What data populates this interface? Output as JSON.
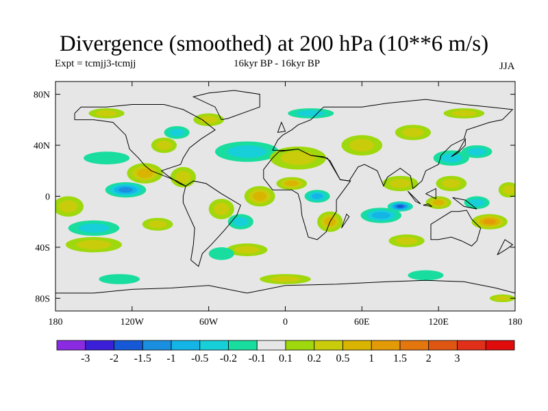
{
  "chart_data": {
    "type": "heatmap",
    "title": "Divergence (smoothed) at 200 hPa (10**6 m/s)",
    "subtitle_left": "Expt = tcmjj3-tcmjj",
    "subtitle_center": "16kyr BP - 16kyr BP",
    "subtitle_right": "JJA",
    "x_ticks": [
      {
        "value": -180,
        "label": "180"
      },
      {
        "value": -120,
        "label": "120W"
      },
      {
        "value": -60,
        "label": "60W"
      },
      {
        "value": 0,
        "label": "0"
      },
      {
        "value": 60,
        "label": "60E"
      },
      {
        "value": 120,
        "label": "120E"
      },
      {
        "value": 180,
        "label": "180"
      }
    ],
    "y_ticks": [
      {
        "value": 80,
        "label": "80N"
      },
      {
        "value": 40,
        "label": "40N"
      },
      {
        "value": 0,
        "label": "0"
      },
      {
        "value": -40,
        "label": "40S"
      },
      {
        "value": -80,
        "label": "80S"
      }
    ],
    "xlim": [
      -180,
      180
    ],
    "ylim": [
      -90,
      90
    ],
    "colorbar": {
      "colors": [
        "#8a2be2",
        "#3b1ed8",
        "#1559d6",
        "#1a8fe0",
        "#14b4e6",
        "#17cfd9",
        "#19dd9e",
        "#e6e6e6",
        "#9fd80c",
        "#c8cc0a",
        "#d9b400",
        "#e39a07",
        "#e3760c",
        "#df5512",
        "#e0301a",
        "#e00b0b"
      ],
      "labels": [
        "-3",
        "-2",
        "-1.5",
        "-1",
        "-0.5",
        "-0.2",
        "-0.1",
        "0.1",
        "0.2",
        "0.5",
        "1",
        "1.5",
        "2",
        "3"
      ]
    },
    "blobs": [
      {
        "lon": -125,
        "lat": 5,
        "rlon": 16,
        "rlat": 6,
        "value": -1.2
      },
      {
        "lon": -150,
        "lat": -25,
        "rlon": 20,
        "rlat": 6,
        "value": -0.35
      },
      {
        "lon": -150,
        "lat": -38,
        "rlon": 22,
        "rlat": 6,
        "value": 0.4
      },
      {
        "lon": -170,
        "lat": -8,
        "rlon": 12,
        "rlat": 8,
        "value": 0.3
      },
      {
        "lon": -110,
        "lat": 18,
        "rlon": 14,
        "rlat": 8,
        "value": 0.9
      },
      {
        "lon": -140,
        "lat": 30,
        "rlon": 18,
        "rlat": 5,
        "value": -0.15
      },
      {
        "lon": -95,
        "lat": 40,
        "rlon": 10,
        "rlat": 6,
        "value": 0.3
      },
      {
        "lon": -85,
        "lat": 50,
        "rlon": 10,
        "rlat": 5,
        "value": -0.3
      },
      {
        "lon": -80,
        "lat": 15,
        "rlon": 10,
        "rlat": 8,
        "value": 0.25
      },
      {
        "lon": -60,
        "lat": 60,
        "rlon": 12,
        "rlat": 5,
        "value": 0.2
      },
      {
        "lon": -30,
        "lat": 35,
        "rlon": 25,
        "rlat": 8,
        "value": -0.3
      },
      {
        "lon": -20,
        "lat": 0,
        "rlon": 12,
        "rlat": 8,
        "value": 0.5
      },
      {
        "lon": -50,
        "lat": -10,
        "rlon": 10,
        "rlat": 8,
        "value": 0.4
      },
      {
        "lon": -35,
        "lat": -20,
        "rlon": 10,
        "rlat": 6,
        "value": -0.3
      },
      {
        "lon": -100,
        "lat": -22,
        "rlon": 12,
        "rlat": 5,
        "value": 0.35
      },
      {
        "lon": -30,
        "lat": -42,
        "rlon": 16,
        "rlat": 5,
        "value": 0.25
      },
      {
        "lon": -50,
        "lat": -45,
        "rlon": 10,
        "rlat": 5,
        "value": -0.15
      },
      {
        "lon": 10,
        "lat": 30,
        "rlon": 22,
        "rlat": 9,
        "value": 0.35
      },
      {
        "lon": 5,
        "lat": 10,
        "rlon": 12,
        "rlat": 5,
        "value": 0.8
      },
      {
        "lon": 25,
        "lat": 0,
        "rlon": 10,
        "rlat": 5,
        "value": -0.5
      },
      {
        "lon": 35,
        "lat": -20,
        "rlon": 10,
        "rlat": 8,
        "value": 0.9
      },
      {
        "lon": 75,
        "lat": -15,
        "rlon": 16,
        "rlat": 6,
        "value": -0.9
      },
      {
        "lon": 90,
        "lat": -8,
        "rlon": 10,
        "rlat": 4,
        "value": -1.6
      },
      {
        "lon": 95,
        "lat": -35,
        "rlon": 14,
        "rlat": 5,
        "value": 0.3
      },
      {
        "lon": 90,
        "lat": 10,
        "rlon": 14,
        "rlat": 6,
        "value": 0.3
      },
      {
        "lon": 60,
        "lat": 40,
        "rlon": 16,
        "rlat": 8,
        "value": 0.35
      },
      {
        "lon": 100,
        "lat": 50,
        "rlon": 14,
        "rlat": 6,
        "value": 0.3
      },
      {
        "lon": 130,
        "lat": 30,
        "rlon": 14,
        "rlat": 6,
        "value": -0.4
      },
      {
        "lon": 150,
        "lat": 35,
        "rlon": 12,
        "rlat": 5,
        "value": -0.3
      },
      {
        "lon": 130,
        "lat": 10,
        "rlon": 12,
        "rlat": 6,
        "value": 0.3
      },
      {
        "lon": 120,
        "lat": -5,
        "rlon": 10,
        "rlat": 5,
        "value": 0.8
      },
      {
        "lon": 150,
        "lat": -5,
        "rlon": 10,
        "rlat": 5,
        "value": -0.3
      },
      {
        "lon": 160,
        "lat": -20,
        "rlon": 14,
        "rlat": 6,
        "value": 1.2
      },
      {
        "lon": 175,
        "lat": 5,
        "rlon": 8,
        "rlat": 6,
        "value": 0.3
      },
      {
        "lon": 20,
        "lat": 65,
        "rlon": 18,
        "rlat": 4,
        "value": -0.2
      },
      {
        "lon": 140,
        "lat": 65,
        "rlon": 16,
        "rlat": 4,
        "value": 0.3
      },
      {
        "lon": -140,
        "lat": 65,
        "rlon": 14,
        "rlat": 4,
        "value": 0.3
      },
      {
        "lon": -130,
        "lat": -65,
        "rlon": 16,
        "rlat": 4,
        "value": -0.15
      },
      {
        "lon": 0,
        "lat": -65,
        "rlon": 20,
        "rlat": 4,
        "value": 0.25
      },
      {
        "lon": 110,
        "lat": -62,
        "rlon": 14,
        "rlat": 4,
        "value": -0.15
      },
      {
        "lon": 170,
        "lat": -80,
        "rlon": 10,
        "rlat": 3,
        "value": 0.4
      }
    ]
  }
}
